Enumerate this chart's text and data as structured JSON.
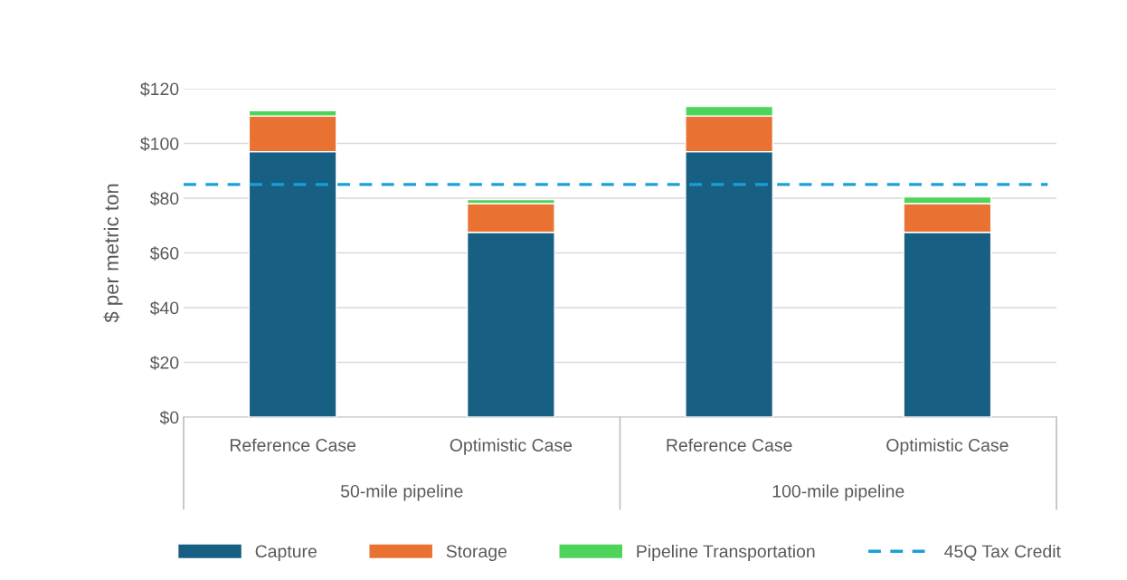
{
  "chart_data": {
    "type": "bar",
    "stacked": true,
    "ylabel": "$ per metric ton",
    "categories": [
      "Reference Case",
      "Optimistic Case",
      "Reference Case",
      "Optimistic Case"
    ],
    "annotations": [
      "50-mile pipeline",
      "100-mile pipeline"
    ],
    "series": [
      {
        "name": "Capture",
        "color": "#175f83",
        "values": [
          97,
          67.5,
          97,
          67.5
        ]
      },
      {
        "name": "Storage",
        "color": "#e97132",
        "values": [
          13,
          10.5,
          13,
          10.5
        ]
      },
      {
        "name": "Pipeline Transportation",
        "color": "#4ed45a",
        "values": [
          2,
          1.5,
          3.5,
          2.5
        ]
      }
    ],
    "ref_lines": [
      {
        "axis": "y",
        "value": 85,
        "label": "45Q Tax Credit",
        "color": "#1aa0d8",
        "line_style": "dashed"
      }
    ],
    "ylim": [
      0,
      120
    ],
    "yticks": [
      {
        "value": 0,
        "label": "$0"
      },
      {
        "value": 20,
        "label": "$20"
      },
      {
        "value": 40,
        "label": "$40"
      },
      {
        "value": 60,
        "label": "$60"
      },
      {
        "value": 80,
        "label": "$80"
      },
      {
        "value": 100,
        "label": "$100"
      },
      {
        "value": 120,
        "label": "$120"
      }
    ],
    "grid": "y",
    "legend": "bottom"
  }
}
